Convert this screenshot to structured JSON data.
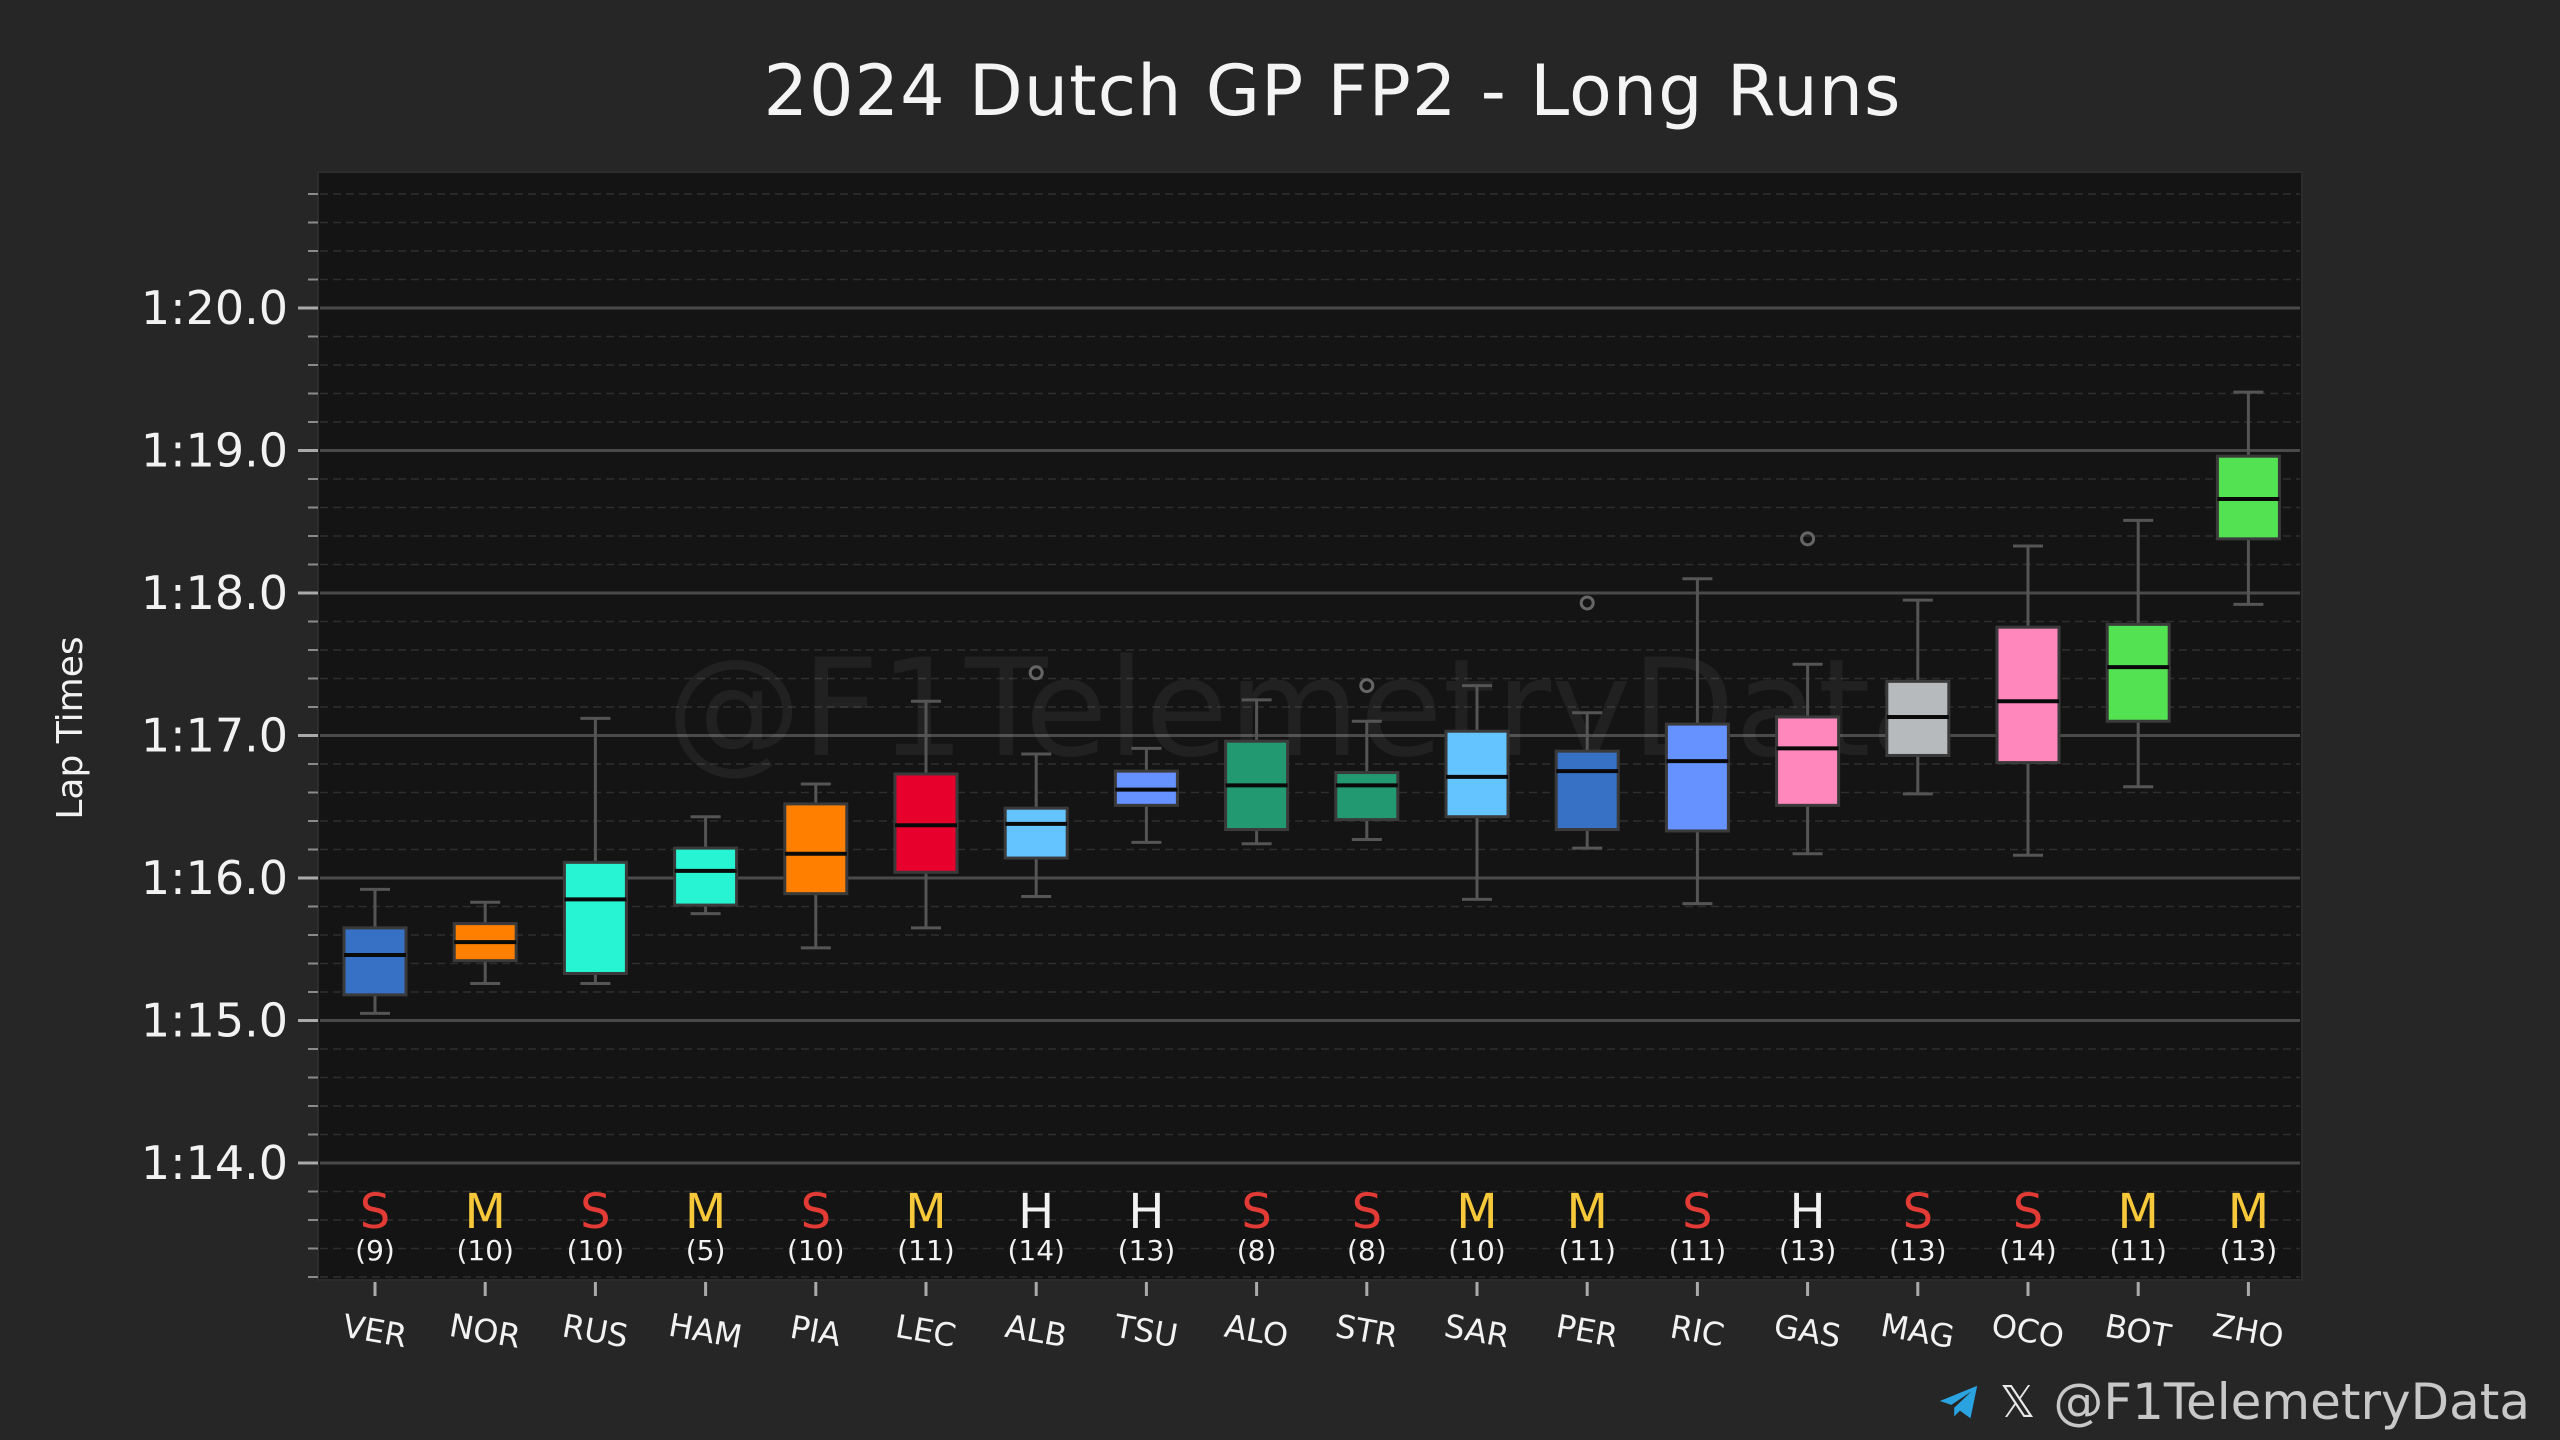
{
  "footer": {
    "handle": "@F1TelemetryData",
    "telegram_icon": "telegram-icon",
    "x_icon": "x-icon"
  },
  "chart_data": {
    "type": "box",
    "title": "2024 Dutch GP FP2 - Long Runs",
    "ylabel": "Lap Times",
    "xlabel": "",
    "ylim": [
      73.2,
      81.0
    ],
    "yticks": [
      74,
      75,
      76,
      77,
      78,
      79,
      80
    ],
    "ytick_labels": [
      "1:14.0",
      "1:15.0",
      "1:16.0",
      "1:17.0",
      "1:18.0",
      "1:19.0",
      "1:20.0"
    ],
    "grid": true,
    "watermark": "@F1TelemetryData",
    "drivers": [
      {
        "driver": "VER",
        "compound": "S",
        "laps": "(9)",
        "color": "#3671c6",
        "min": 75.05,
        "q1": 75.18,
        "median": 75.46,
        "q3": 75.65,
        "max": 75.92,
        "outliers": []
      },
      {
        "driver": "NOR",
        "compound": "M",
        "laps": "(10)",
        "color": "#ff8000",
        "min": 75.26,
        "q1": 75.42,
        "median": 75.55,
        "q3": 75.68,
        "max": 75.83,
        "outliers": []
      },
      {
        "driver": "RUS",
        "compound": "S",
        "laps": "(10)",
        "color": "#27f4d2",
        "min": 75.26,
        "q1": 75.33,
        "median": 75.85,
        "q3": 76.11,
        "max": 77.12,
        "outliers": []
      },
      {
        "driver": "HAM",
        "compound": "M",
        "laps": "(5)",
        "color": "#27f4d2",
        "min": 75.75,
        "q1": 75.81,
        "median": 76.05,
        "q3": 76.21,
        "max": 76.43,
        "outliers": []
      },
      {
        "driver": "PIA",
        "compound": "S",
        "laps": "(10)",
        "color": "#ff8000",
        "min": 75.51,
        "q1": 75.89,
        "median": 76.17,
        "q3": 76.52,
        "max": 76.66,
        "outliers": []
      },
      {
        "driver": "LEC",
        "compound": "M",
        "laps": "(11)",
        "color": "#e8002d",
        "min": 75.65,
        "q1": 76.04,
        "median": 76.37,
        "q3": 76.73,
        "max": 77.24,
        "outliers": []
      },
      {
        "driver": "ALB",
        "compound": "H",
        "laps": "(14)",
        "color": "#64c4ff",
        "min": 75.87,
        "q1": 76.14,
        "median": 76.38,
        "q3": 76.49,
        "max": 76.87,
        "outliers": [
          77.44
        ]
      },
      {
        "driver": "TSU",
        "compound": "H",
        "laps": "(13)",
        "color": "#6692ff",
        "min": 76.25,
        "q1": 76.51,
        "median": 76.62,
        "q3": 76.75,
        "max": 76.91,
        "outliers": []
      },
      {
        "driver": "ALO",
        "compound": "S",
        "laps": "(8)",
        "color": "#229971",
        "min": 76.24,
        "q1": 76.34,
        "median": 76.65,
        "q3": 76.96,
        "max": 77.25,
        "outliers": []
      },
      {
        "driver": "STR",
        "compound": "S",
        "laps": "(8)",
        "color": "#229971",
        "min": 76.27,
        "q1": 76.41,
        "median": 76.65,
        "q3": 76.74,
        "max": 77.1,
        "outliers": [
          77.35
        ]
      },
      {
        "driver": "SAR",
        "compound": "M",
        "laps": "(10)",
        "color": "#64c4ff",
        "min": 75.85,
        "q1": 76.43,
        "median": 76.71,
        "q3": 77.03,
        "max": 77.35,
        "outliers": []
      },
      {
        "driver": "PER",
        "compound": "M",
        "laps": "(11)",
        "color": "#3671c6",
        "min": 76.21,
        "q1": 76.34,
        "median": 76.75,
        "q3": 76.89,
        "max": 77.16,
        "outliers": [
          77.93
        ]
      },
      {
        "driver": "RIC",
        "compound": "S",
        "laps": "(11)",
        "color": "#6692ff",
        "min": 75.82,
        "q1": 76.33,
        "median": 76.82,
        "q3": 77.08,
        "max": 78.1,
        "outliers": []
      },
      {
        "driver": "GAS",
        "compound": "H",
        "laps": "(13)",
        "color": "#ff87bc",
        "min": 76.17,
        "q1": 76.51,
        "median": 76.91,
        "q3": 77.13,
        "max": 77.5,
        "outliers": [
          78.38
        ]
      },
      {
        "driver": "MAG",
        "compound": "S",
        "laps": "(13)",
        "color": "#b6babd",
        "min": 76.59,
        "q1": 76.86,
        "median": 77.13,
        "q3": 77.38,
        "max": 77.95,
        "outliers": []
      },
      {
        "driver": "OCO",
        "compound": "S",
        "laps": "(14)",
        "color": "#ff87bc",
        "min": 76.16,
        "q1": 76.81,
        "median": 77.24,
        "q3": 77.76,
        "max": 78.33,
        "outliers": []
      },
      {
        "driver": "BOT",
        "compound": "M",
        "laps": "(11)",
        "color": "#52e252",
        "min": 76.64,
        "q1": 77.1,
        "median": 77.48,
        "q3": 77.78,
        "max": 78.51,
        "outliers": []
      },
      {
        "driver": "ZHO",
        "compound": "M",
        "laps": "(13)",
        "color": "#52e252",
        "min": 77.92,
        "q1": 78.38,
        "median": 78.66,
        "q3": 78.96,
        "max": 79.41,
        "outliers": []
      }
    ],
    "compound_colors": {
      "S": "#e23a34",
      "M": "#f7c83a",
      "H": "#f2f2f2"
    }
  }
}
